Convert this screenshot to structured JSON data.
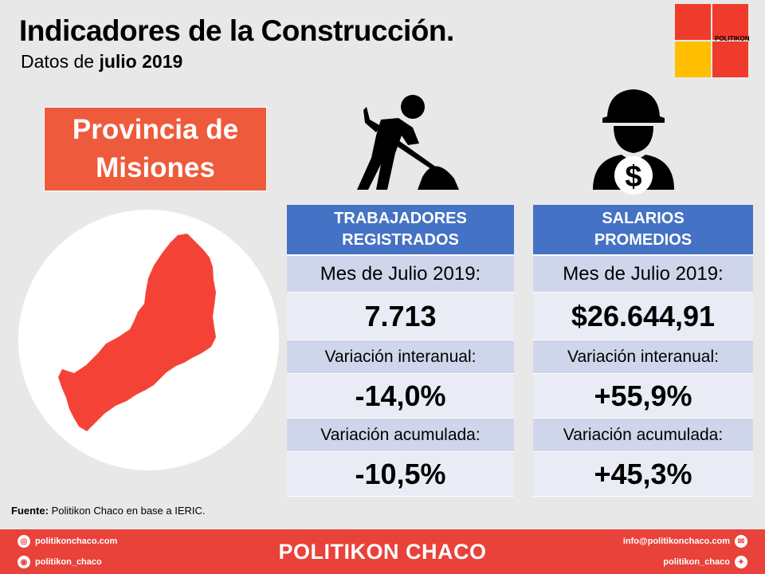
{
  "header": {
    "title": "Indicadores de la Construcción.",
    "subtitle_prefix": "Datos de",
    "subtitle_bold": "julio 2019"
  },
  "logo": {
    "text": "POLITIKON",
    "colors": [
      "#ef3b2c",
      "#ffbf00"
    ]
  },
  "province": {
    "line1": "Provincia de",
    "line2": "Misiones",
    "color": "#ee5a3c"
  },
  "cards": [
    {
      "head_line1": "TRABAJADORES",
      "head_line2": "REGISTRADOS",
      "icon": "construction-worker-shoveling-icon",
      "month_label": "Mes de Julio 2019:",
      "month_value": "7.713",
      "yoy_label": "Variación interanual:",
      "yoy_value": "-14,0%",
      "ytd_label": "Variación acumulada:",
      "ytd_value": "-10,5%"
    },
    {
      "head_line1": "SALARIOS",
      "head_line2": "PROMEDIOS",
      "icon": "worker-helmet-dollar-icon",
      "month_label": "Mes de Julio 2019:",
      "month_value": "$26.644,91",
      "yoy_label": "Variación interanual:",
      "yoy_value": "+55,9%",
      "ytd_label": "Variación acumulada:",
      "ytd_value": "+45,3%"
    }
  ],
  "source": {
    "label": "Fuente:",
    "text": "Politikon Chaco en base a IERIC."
  },
  "footer": {
    "brand": "POLITIKON CHACO",
    "website": "politikonchaco.com",
    "instagram": "politikon_chaco",
    "email": "info@politikonchaco.com",
    "twitter": "politikon_chaco",
    "color": "#e8423a"
  },
  "colors": {
    "header_blue": "#4472c4",
    "label_bg": "#cfd5ea",
    "value_bg": "#e9ebf5",
    "map_red": "#f44336"
  }
}
